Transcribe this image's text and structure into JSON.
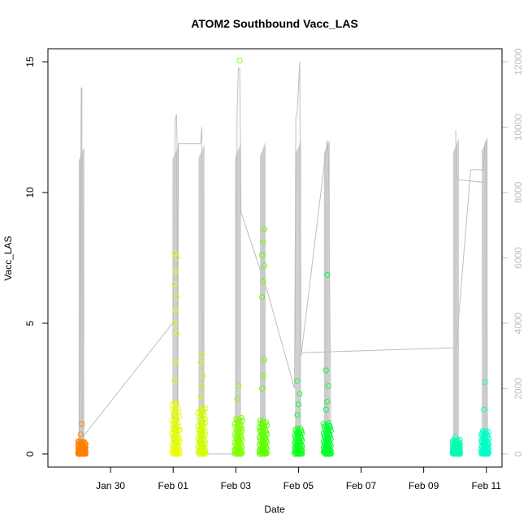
{
  "chart_data": {
    "type": "scatter",
    "title": "ATOM2 Southbound Vacc_LAS",
    "xlabel": "Date",
    "ylabel": "Vacc_LAS",
    "xlim": [
      "2016-01-28T00:00",
      "2016-02-11T12:00"
    ],
    "ylim": [
      -0.5,
      15.5
    ],
    "y2lim": [
      -400,
      12400
    ],
    "x_ticks": [
      {
        "date": "2016-01-30",
        "label": "Jan 30"
      },
      {
        "date": "2016-02-01",
        "label": "Feb 01"
      },
      {
        "date": "2016-02-03",
        "label": "Feb 03"
      },
      {
        "date": "2016-02-05",
        "label": "Feb 05"
      },
      {
        "date": "2016-02-07",
        "label": "Feb 07"
      },
      {
        "date": "2016-02-09",
        "label": "Feb 09"
      },
      {
        "date": "2016-02-11",
        "label": "Feb 11"
      }
    ],
    "y_ticks": [
      0,
      5,
      10,
      15
    ],
    "y2_ticks": [
      0,
      2000,
      4000,
      6000,
      8000,
      10000,
      12000
    ],
    "grid": false,
    "scatter_clusters": [
      {
        "date": "2016-01-29T02:00",
        "color": "#ff8000",
        "ymin": 0.0,
        "ymax": 0.5,
        "outliers": [
          0.75,
          1.15
        ]
      },
      {
        "date": "2016-02-01T02:00",
        "color": "#e6ff00",
        "ymin": 0.0,
        "ymax": 2.0,
        "outliers": [
          2.8,
          3.5,
          4.6,
          5.0,
          5.5,
          6.0,
          6.5,
          7.0,
          7.5,
          7.7
        ]
      },
      {
        "date": "2016-02-01T22:00",
        "color": "#d0ff00",
        "ymin": 0.0,
        "ymax": 1.8,
        "outliers": [
          2.2,
          2.6,
          3.0,
          3.5,
          3.8
        ]
      },
      {
        "date": "2016-02-03T02:00",
        "color": "#80ff00",
        "ymin": 0.0,
        "ymax": 1.4,
        "outliers": [
          2.1,
          2.6,
          15.05
        ]
      },
      {
        "date": "2016-02-03T21:00",
        "color": "#60ff00",
        "ymin": 0.0,
        "ymax": 1.3,
        "outliers": [
          2.5,
          3.0,
          3.6,
          6.0,
          6.6,
          7.2,
          7.6,
          8.1,
          8.6
        ]
      },
      {
        "date": "2016-02-05T00:00",
        "color": "#10ff20",
        "ymin": 0.0,
        "ymax": 1.0,
        "outliers": [
          1.5,
          1.9,
          2.3,
          2.8
        ]
      },
      {
        "date": "2016-02-05T22:00",
        "color": "#00ff30",
        "ymin": 0.0,
        "ymax": 1.2,
        "outliers": [
          1.7,
          2.0,
          2.6,
          3.2,
          6.85
        ]
      },
      {
        "date": "2016-02-10T01:00",
        "color": "#00ffb0",
        "ymin": 0.0,
        "ymax": 0.55,
        "outliers": [
          0.65
        ]
      },
      {
        "date": "2016-02-10T23:00",
        "color": "#00ffc8",
        "ymin": 0.0,
        "ymax": 0.9,
        "outliers": [
          1.7,
          2.75
        ]
      }
    ],
    "altitude_line": {
      "color": "#bebebe",
      "axis": "right",
      "points": [
        [
          "2016-01-29T00:00",
          200
        ],
        [
          "2016-01-29T00:30",
          2600
        ],
        [
          "2016-01-29T01:30",
          11200
        ],
        [
          "2016-01-29T02:00",
          11200
        ],
        [
          "2016-01-29T02:15",
          500
        ],
        [
          "2016-01-31T23:30",
          4000
        ],
        [
          "2016-02-01T00:00",
          4000
        ],
        [
          "2016-02-01T01:30",
          10200
        ],
        [
          "2016-02-01T02:30",
          10400
        ],
        [
          "2016-02-01T03:00",
          9500
        ],
        [
          "2016-02-01T03:30",
          0
        ],
        [
          "2016-02-01T04:00",
          9500
        ],
        [
          "2016-02-01T21:00",
          9500
        ],
        [
          "2016-02-01T22:00",
          10000
        ],
        [
          "2016-02-01T23:00",
          0
        ],
        [
          "2016-02-03T00:00",
          0
        ],
        [
          "2016-02-03T01:00",
          10500
        ],
        [
          "2016-02-03T02:00",
          11800
        ],
        [
          "2016-02-03T03:00",
          11800
        ],
        [
          "2016-02-03T04:00",
          7400
        ],
        [
          "2016-02-04T00:00",
          5000
        ],
        [
          "2016-02-04T21:00",
          2000
        ],
        [
          "2016-02-04T22:00",
          10300
        ],
        [
          "2016-02-04T23:00",
          10400
        ],
        [
          "2016-02-05T01:00",
          12000
        ],
        [
          "2016-02-05T02:00",
          3000
        ],
        [
          "2016-02-05T22:00",
          9600
        ],
        [
          "2016-02-05T23:00",
          9000
        ],
        [
          "2016-02-06T01:00",
          0
        ]
      ]
    },
    "altitude_segments": [
      [
        [
          "2016-02-05T03:00",
          3100
        ],
        [
          "2016-02-10T00:00",
          3250
        ],
        [
          "2016-02-10T01:00",
          3300
        ],
        [
          "2016-02-10T12:00",
          8700
        ],
        [
          "2016-02-10T22:00",
          8700
        ],
        [
          "2016-02-10T23:00",
          9500
        ],
        [
          "2016-02-11T00:00",
          9600
        ],
        [
          "2016-02-11T01:00",
          0
        ]
      ],
      [
        [
          "2016-02-10T00:30",
          9900
        ],
        [
          "2016-02-10T01:00",
          8400
        ],
        [
          "2016-02-11T00:30",
          8300
        ]
      ]
    ]
  }
}
